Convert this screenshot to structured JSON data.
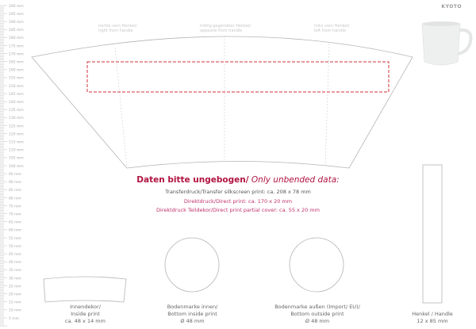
{
  "brand": {
    "name": "KYOTO"
  },
  "ruler": {
    "unit": "mm",
    "max": 200,
    "step": 5
  },
  "positions": [
    {
      "line1": "rechts vom Henkel/",
      "line2": "right from handle"
    },
    {
      "line1": "mittig gegenüber Henkel/",
      "line2": "opposite from handle"
    },
    {
      "line1": "links vom Henkel/",
      "line2": "left from handle"
    }
  ],
  "notice": {
    "bold": "Daten bitte ungebogen/",
    "italic": " Only unbended data:"
  },
  "print_specs": [
    {
      "text": "Transferdruck/Transfer silkscreen print: ca. 208 x 78 mm",
      "color": "#555555"
    },
    {
      "text": "Direktdruck/Direct print: ca.  170 x 20 mm",
      "color": "#c0306a"
    },
    {
      "text": "Direktdruck Teildekor/Direct print partial cover: ca. 55 x 20 mm",
      "color": "#c0306a"
    }
  ],
  "parts": [
    {
      "line1": "Innendekor/",
      "line2": "Inside print",
      "line3": "ca. 48 x 14 mm"
    },
    {
      "line1": "Bodenmarke innen/",
      "line2": "Bottom inside print",
      "line3": "Ø 48 mm"
    },
    {
      "line1": "Bodenmarke außen (Import/ EU)/",
      "line2": "Bottom outside print",
      "line3": "Ø 48 mm"
    },
    {
      "line1": "Henkel / Handle",
      "line2": "12 x 85 mm"
    }
  ],
  "colors": {
    "accent": "#b0123f",
    "dashed_area": "#d0303a",
    "outline": "#b5b5b5"
  }
}
